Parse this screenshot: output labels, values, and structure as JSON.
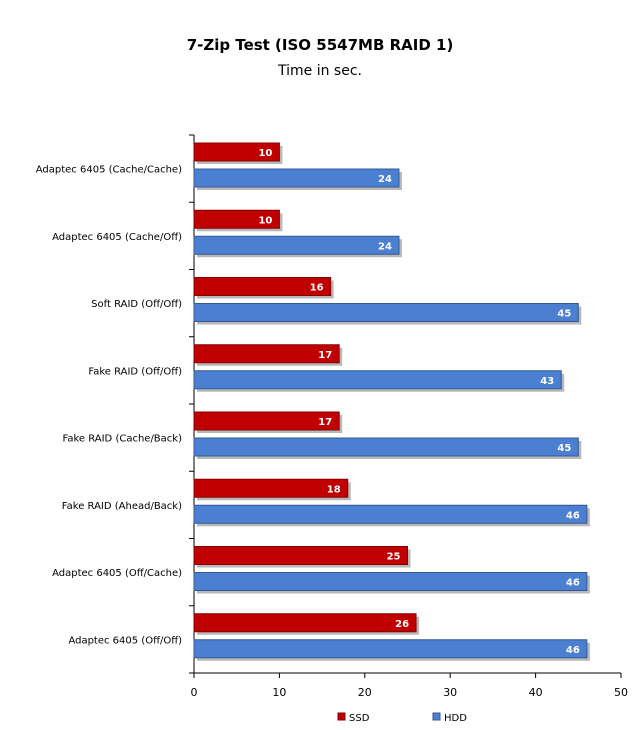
{
  "chart_data": {
    "type": "bar",
    "orientation": "horizontal",
    "title": "7-Zip Test (ISO 5547MB RAID 1)",
    "subtitle": "Time in sec.",
    "categories": [
      "Adaptec 6405 (Cache/Cache)",
      "Adaptec 6405 (Cache/Off)",
      "Soft RAID (Off/Off)",
      "Fake RAID (Off/Off)",
      "Fake RAID (Cache/Back)",
      "Fake RAID (Ahead/Back)",
      "Adaptec 6405 (Off/Cache)",
      "Adaptec 6405 (Off/Off)"
    ],
    "series": [
      {
        "name": "SSD",
        "color": "#c00000",
        "values": [
          10,
          10,
          16,
          17,
          17,
          18,
          25,
          26
        ]
      },
      {
        "name": "HDD",
        "color": "#4a7fd1",
        "values": [
          24,
          24,
          45,
          43,
          45,
          46,
          46,
          46
        ]
      }
    ],
    "xlim": [
      0,
      50
    ],
    "xticks": [
      0,
      10,
      20,
      30,
      40,
      50
    ],
    "grid": false,
    "legend_position": "bottom"
  }
}
